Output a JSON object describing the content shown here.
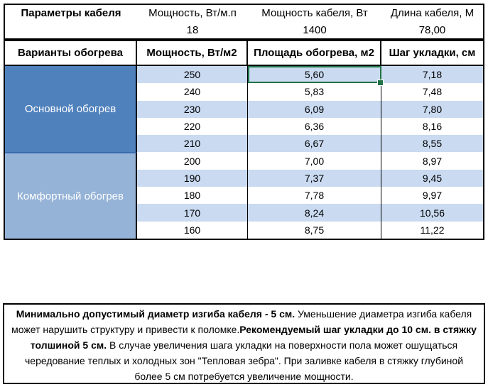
{
  "colors": {
    "primary_blue": "#4F81BD",
    "secondary_blue": "#95B3D7",
    "stripe_blue": "#C9DAF1",
    "selection_green": "#217346",
    "border": "#000000"
  },
  "cable_params": {
    "title": "Параметры кабеля",
    "columns": [
      {
        "label": "Мощность, Вт/м.п",
        "value": "18"
      },
      {
        "label": "Мощность кабеля, Вт",
        "value": "1400"
      },
      {
        "label": "Длина кабеля, М",
        "value": "78,00"
      }
    ]
  },
  "table": {
    "headers": [
      "Варианты обогрева",
      "Мощность, Вт/м2",
      "Площадь обогрева, м2",
      "Шаг укладки, см"
    ],
    "groups": [
      {
        "label": "Основной обогрев",
        "rows": [
          [
            "250",
            "5,60",
            "7,18"
          ],
          [
            "240",
            "5,83",
            "7,48"
          ],
          [
            "230",
            "6,09",
            "7,80"
          ],
          [
            "220",
            "6,36",
            "8,16"
          ],
          [
            "210",
            "6,67",
            "8,55"
          ]
        ]
      },
      {
        "label": "Комфортный обогрев",
        "rows": [
          [
            "200",
            "7,00",
            "8,97"
          ],
          [
            "190",
            "7,37",
            "9,45"
          ],
          [
            "180",
            "7,78",
            "9,97"
          ],
          [
            "170",
            "8,24",
            "10,56"
          ],
          [
            "160",
            "8,75",
            "11,22"
          ]
        ]
      }
    ],
    "selected_cell": {
      "group": 0,
      "row": 0,
      "col": 1,
      "value": "5,60"
    }
  },
  "note": {
    "segments": [
      {
        "text": "Минимально допустимый диаметр изгиба кабеля - 5 см.",
        "bold": true
      },
      {
        "text": "  Уменьшение диаметра изгиба кабеля может нарушить структуру и привести к поломке.",
        "bold": false
      },
      {
        "text": "Рекомендуемый шаг укладки до 10 см. в стяжку толшиной 5 см.",
        "bold": true
      },
      {
        "text": " В  случае увеличения шага укладки на поверхности пола может ошущаться чередование теплых и холодных зон \"Тепловая зебра\". При заливке кабеля в стяжку глубиной более 5 см потребуется увеличение мощности.",
        "bold": false
      }
    ]
  }
}
